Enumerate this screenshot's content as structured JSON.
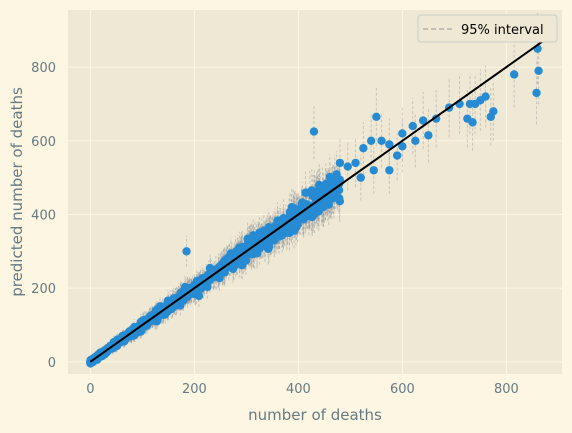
{
  "chart_data": {
    "type": "scatter",
    "title": "",
    "xlabel": "number of deaths",
    "ylabel": "predicted number of deaths",
    "xlim": [
      -43,
      907
    ],
    "ylim": [
      -33,
      955
    ],
    "xticks": [
      0,
      200,
      400,
      600,
      800
    ],
    "yticks": [
      0,
      200,
      400,
      600,
      800
    ],
    "grid": true,
    "legend": {
      "position": "top-right",
      "entries": [
        "95% interval"
      ]
    },
    "colors": {
      "figure_background": "#fdf6e3",
      "axes_background": "#eee8d5",
      "grid": "#fdf6e3",
      "points": "#268bd2",
      "error_bars": "#999999",
      "identity_line": "#000000",
      "text": "#657b83"
    },
    "point_cloud": {
      "n_points": 900,
      "x_range": [
        0,
        480
      ],
      "y_relation": "predicted ≈ actual (scatter grows with value)",
      "interval_halfwidth_approx": "≈ 0.1 × value + 12"
    },
    "outlier_points": [
      [
        860,
        850
      ],
      [
        862,
        790
      ],
      [
        858,
        730
      ],
      [
        815,
        780
      ],
      [
        775,
        680
      ],
      [
        750,
        710
      ],
      [
        740,
        700
      ],
      [
        760,
        720
      ],
      [
        770,
        665
      ],
      [
        730,
        700
      ],
      [
        725,
        660
      ],
      [
        735,
        650
      ],
      [
        710,
        700
      ],
      [
        690,
        690
      ],
      [
        665,
        660
      ],
      [
        640,
        655
      ],
      [
        625,
        600
      ],
      [
        600,
        620
      ],
      [
        590,
        560
      ],
      [
        575,
        590
      ],
      [
        560,
        600
      ],
      [
        545,
        520
      ],
      [
        540,
        600
      ],
      [
        525,
        580
      ],
      [
        520,
        500
      ],
      [
        510,
        540
      ],
      [
        495,
        530
      ],
      [
        480,
        540
      ],
      [
        475,
        470
      ],
      [
        470,
        500
      ],
      [
        455,
        450
      ],
      [
        440,
        480
      ],
      [
        448,
        420
      ],
      [
        430,
        625
      ],
      [
        550,
        665
      ],
      [
        600,
        585
      ],
      [
        620,
        640
      ],
      [
        650,
        615
      ],
      [
        575,
        520
      ],
      [
        185,
        300
      ]
    ],
    "identity_line": {
      "from": [
        0,
        0
      ],
      "to": [
        870,
        870
      ]
    }
  }
}
